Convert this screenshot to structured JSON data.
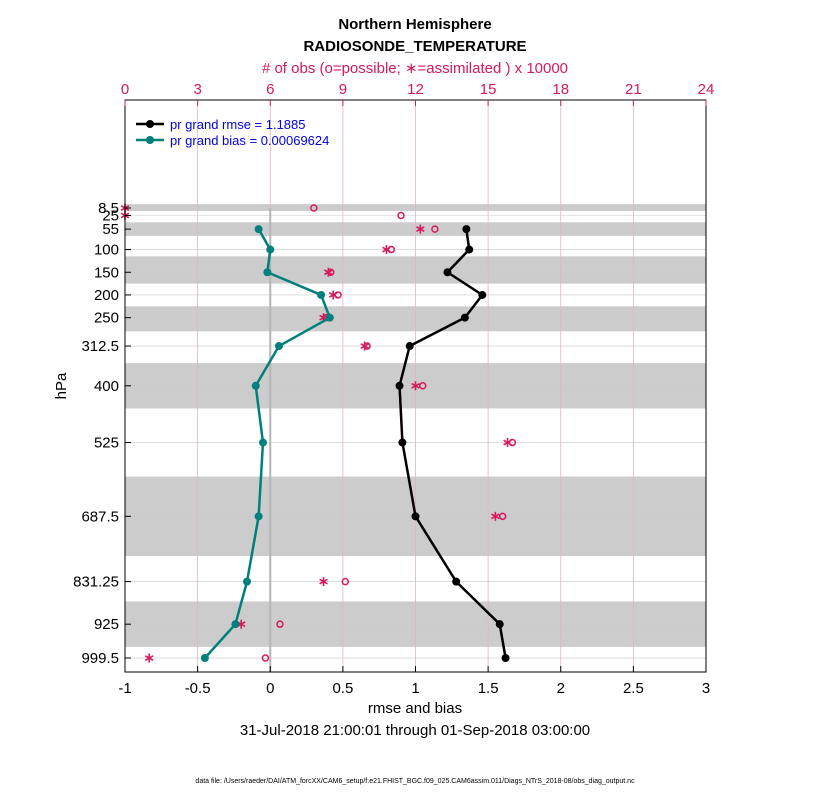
{
  "chart_data": {
    "type": "line",
    "title": "Northern Hemisphere",
    "subtitle": "RADIOSONDE_TEMPERATURE",
    "xlabel": "rmse and bias",
    "ylabel": "hPa",
    "top_xlabel": "# of obs (o=possible; ∗=assimilated ) x 10000",
    "date_range": "31-Jul-2018 21:00:01 through 01-Sep-2018 03:00:00",
    "footer": "data file: /Users/raeder/DAI/ATM_forcXX/CAM6_setup/f.e21.FHIST_BGC.f09_025.CAM6assim.011/Diags_NTrS_2018-08/obs_diag_output.nc",
    "xlim": [
      -1,
      3
    ],
    "xticks": [
      -1,
      -0.5,
      0,
      0.5,
      1,
      1.5,
      2,
      2.5,
      3
    ],
    "xtick_labels": [
      "-1",
      "-0.5",
      "0",
      "0.5",
      "1",
      "1.5",
      "2",
      "2.5",
      "3"
    ],
    "top_xlim": [
      0,
      24
    ],
    "top_xticks": [
      0,
      3,
      6,
      9,
      12,
      15,
      18,
      21,
      24
    ],
    "top_xtick_labels": [
      "0",
      "3",
      "6",
      "9",
      "12",
      "15",
      "18",
      "21",
      "24"
    ],
    "levels": [
      8.5,
      25,
      55,
      100,
      150,
      200,
      250,
      312.5,
      400,
      525,
      687.5,
      831.25,
      925,
      999.5
    ],
    "level_labels": [
      "8.5",
      "25",
      "55",
      "100",
      "150",
      "200",
      "250",
      "312.5",
      "400",
      "525",
      "687.5",
      "831.25",
      "925",
      "999.5"
    ],
    "shaded_bands": [
      [
        0,
        15
      ],
      [
        40,
        70
      ],
      [
        115,
        175
      ],
      [
        225,
        280
      ],
      [
        350,
        450
      ],
      [
        600,
        775
      ],
      [
        875,
        975
      ]
    ],
    "colors": {
      "rmse": "#000000",
      "bias": "#00807d",
      "obs": "#d6195e",
      "band": "#cccccc",
      "legend_text": "#0000ee",
      "top_axis": "#d6195e",
      "zero_line": "#b5b5b5"
    },
    "series": [
      {
        "name": "rmse",
        "legend": "pr grand rmse = 1.1885",
        "x": [
          1.35,
          1.37,
          1.22,
          1.46,
          1.34,
          0.96,
          0.89,
          0.91,
          1.0,
          1.28,
          1.58,
          1.62
        ]
      },
      {
        "name": "bias",
        "legend": "pr grand bias = 0.00069624",
        "x": [
          -0.08,
          0.0,
          -0.02,
          0.35,
          0.41,
          0.06,
          -0.1,
          -0.05,
          -0.08,
          -0.16,
          -0.24,
          -0.45
        ]
      }
    ],
    "line_levels": [
      55,
      100,
      150,
      200,
      250,
      312.5,
      400,
      525,
      687.5,
      831.25,
      925,
      999.5
    ],
    "obs_possible": [
      7.8,
      11.4,
      12.8,
      11.0,
      8.5,
      8.8,
      8.3,
      10.0,
      12.3,
      16.0,
      15.6,
      9.1,
      6.4,
      5.8
    ],
    "obs_assimilated": [
      0.0,
      0.0,
      12.2,
      10.8,
      8.4,
      8.6,
      8.2,
      9.9,
      12.0,
      15.8,
      15.3,
      8.2,
      4.8,
      1.0
    ]
  }
}
